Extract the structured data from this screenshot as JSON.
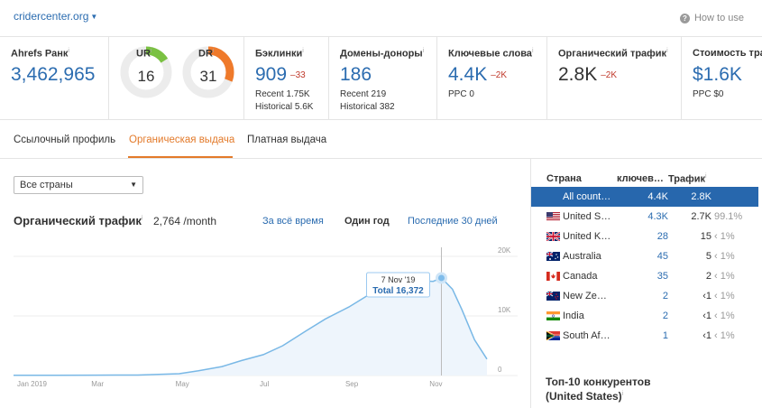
{
  "header": {
    "domain": "cridercenter.org",
    "how_to_use": "How to use"
  },
  "metrics": {
    "ahrefs_rank": {
      "label": "Ahrefs Ранк",
      "value": "3,462,965"
    },
    "ur": {
      "label": "UR",
      "value": "16",
      "level": 0.16
    },
    "dr": {
      "label": "DR",
      "value": "31",
      "level": 0.31
    },
    "backlinks": {
      "label": "Бэклинки",
      "value": "909",
      "delta": "–33",
      "recent": "Recent 1.75K",
      "historical": "Historical 5.6K"
    },
    "ref_domains": {
      "label": "Домены-доноры",
      "value": "186",
      "recent": "Recent 219",
      "historical": "Historical 382"
    },
    "keywords": {
      "label": "Ключевые слова",
      "value": "4.4K",
      "delta": "–2K",
      "ppc": "PPC 0"
    },
    "organic_traffic": {
      "label": "Органический трафик",
      "value": "2.8K",
      "delta": "–2K"
    },
    "traffic_value": {
      "label": "Стоимость тра",
      "value": "$1.6K",
      "ppc": "PPC $0"
    }
  },
  "tabs": [
    "Ссылочный профиль",
    "Органическая выдача",
    "Платная выдача"
  ],
  "filter": {
    "country_select": "Все страны"
  },
  "chart_header": {
    "title": "Органический трафик",
    "summary": "2,764 /month",
    "ranges": [
      "За всё время",
      "Один год",
      "Последние 30 дней"
    ]
  },
  "chart_data": {
    "type": "area",
    "x_tick_labels": [
      "Jan 2019",
      "Mar",
      "May",
      "Jul",
      "Sep",
      "Nov"
    ],
    "y_tick_labels": [
      "20K",
      "10K",
      "0"
    ],
    "ylim": [
      0,
      20000
    ],
    "tooltip": {
      "date": "7 Nov '19",
      "label": "Total 16,372",
      "value": 16372
    },
    "series": [
      {
        "x": [
          "2019-01-01",
          "2019-02-01",
          "2019-03-01",
          "2019-04-01",
          "2019-05-01",
          "2019-05-15",
          "2019-06-01",
          "2019-06-15",
          "2019-07-01",
          "2019-07-15",
          "2019-08-01",
          "2019-08-15",
          "2019-09-01",
          "2019-09-15",
          "2019-10-01",
          "2019-10-15",
          "2019-11-01",
          "2019-11-07",
          "2019-11-15",
          "2019-11-22",
          "2019-12-01",
          "2019-12-10"
        ],
        "values": [
          50,
          50,
          60,
          70,
          300,
          800,
          1500,
          2500,
          3500,
          5000,
          7500,
          9500,
          11500,
          13500,
          15500,
          16000,
          15800,
          16372,
          14500,
          11000,
          6000,
          2764
        ]
      }
    ]
  },
  "country_table": {
    "headers": [
      "Страна",
      "ключев…",
      "Трафик"
    ],
    "rows": [
      {
        "flag": "globe",
        "country": "All count…",
        "keywords": "4.4K",
        "traffic": "2.8K",
        "share": "",
        "active": true
      },
      {
        "flag": "us",
        "country": "United S…",
        "keywords": "4.3K",
        "traffic": "2.7K",
        "share": "99.1%"
      },
      {
        "flag": "uk",
        "country": "United K…",
        "keywords": "28",
        "traffic": "15",
        "share": "‹ 1%"
      },
      {
        "flag": "au",
        "country": "Australia",
        "keywords": "45",
        "traffic": "5",
        "share": "‹ 1%"
      },
      {
        "flag": "ca",
        "country": "Canada",
        "keywords": "35",
        "traffic": "2",
        "share": "‹ 1%"
      },
      {
        "flag": "nz",
        "country": "New Ze…",
        "keywords": "2",
        "traffic": "‹1",
        "share": "‹ 1%"
      },
      {
        "flag": "in",
        "country": "India",
        "keywords": "2",
        "traffic": "‹1",
        "share": "‹ 1%"
      },
      {
        "flag": "za",
        "country": "South Af…",
        "keywords": "1",
        "traffic": "‹1",
        "share": "‹ 1%"
      }
    ]
  },
  "competitors": {
    "title_line1": "Топ-10 конкурентов",
    "title_line2": "(United States)"
  },
  "colors": {
    "accent": "#e37a2a",
    "link": "#2b6cb0",
    "active_row": "#2767ad",
    "ur_gauge": "#7ac142",
    "dr_gauge": "#ef7a2b",
    "chart_line": "#79b8e6",
    "negative": "#c0392b"
  }
}
